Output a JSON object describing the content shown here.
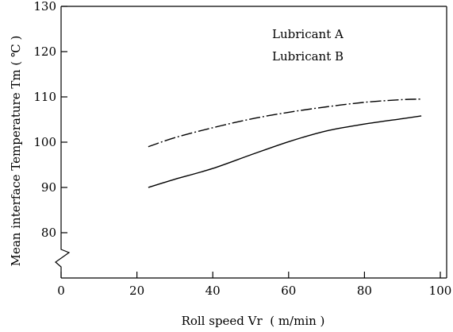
{
  "chart_data": {
    "type": "line",
    "title": "",
    "xlabel": "Roll speed Vr  ( m/min )",
    "ylabel": "Mean interface Temperature Tm ( ℃ )",
    "xlim": [
      0,
      100
    ],
    "ylim": [
      70,
      130
    ],
    "y_axis_break": true,
    "x_ticks": [
      0,
      20,
      40,
      60,
      80,
      100
    ],
    "y_ticks": [
      80,
      90,
      100,
      110,
      120,
      130
    ],
    "grid": false,
    "legend_position": "top-right",
    "series": [
      {
        "name": "Lubricant A",
        "line_style": "dash-dot",
        "x": [
          23,
          30,
          40,
          50,
          60,
          70,
          80,
          90,
          95
        ],
        "y": [
          99,
          101,
          103.2,
          105.1,
          106.6,
          107.8,
          108.8,
          109.4,
          109.5
        ]
      },
      {
        "name": "Lubricant B",
        "line_style": "solid",
        "x": [
          23,
          30,
          40,
          50,
          60,
          70,
          80,
          90,
          95
        ],
        "y": [
          90,
          91.8,
          94.2,
          97.2,
          100.1,
          102.5,
          104,
          105.2,
          105.8
        ]
      }
    ],
    "colors": {
      "axis": "#000000",
      "lines": "#000000"
    }
  }
}
